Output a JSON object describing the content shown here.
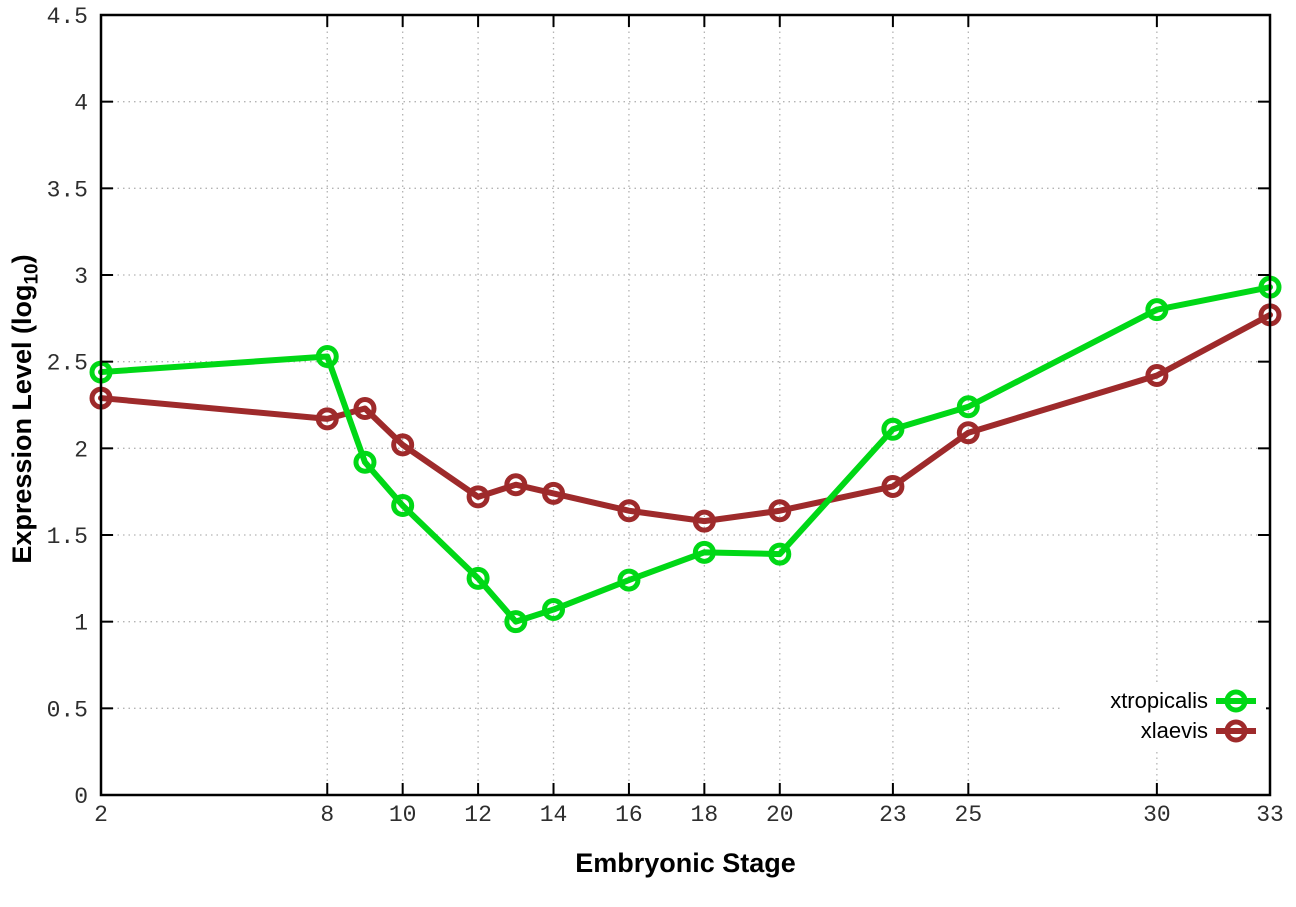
{
  "chart_data": {
    "type": "line",
    "title": "",
    "xlabel": "Embryonic Stage",
    "ylabel": "Expression Level (log10)",
    "ylabel_parts": {
      "prefix": "Expression Level (log",
      "sub": "10",
      "suffix": ")"
    },
    "x": [
      2,
      8,
      9,
      10,
      12,
      13,
      14,
      16,
      18,
      20,
      23,
      25,
      30,
      33
    ],
    "series": [
      {
        "name": "xtropicalis",
        "color": "#00d816",
        "values": [
          2.44,
          2.53,
          1.92,
          1.67,
          1.25,
          1.0,
          1.07,
          1.24,
          1.4,
          1.39,
          2.11,
          2.24,
          2.8,
          2.93
        ]
      },
      {
        "name": "xlaevis",
        "color": "#9e2a2b",
        "values": [
          2.29,
          2.17,
          2.23,
          2.02,
          1.72,
          1.79,
          1.74,
          1.64,
          1.58,
          1.64,
          1.78,
          2.09,
          2.42,
          2.77
        ]
      }
    ],
    "xlim": [
      2,
      33
    ],
    "ylim": [
      0,
      4.5
    ],
    "xticks": [
      2,
      8,
      10,
      12,
      14,
      16,
      18,
      20,
      23,
      25,
      30,
      33
    ],
    "yticks": [
      0,
      0.5,
      1,
      1.5,
      2,
      2.5,
      3,
      3.5,
      4,
      4.5
    ],
    "grid": true,
    "grid_style": "dotted",
    "legend_position": "inside-bottom-right",
    "marker": "open-circle"
  },
  "colors": {
    "background": "#ffffff",
    "axis": "#000000",
    "grid": "#b3b3b3",
    "tick_label": "#2e2e2e",
    "series_green": "#00d816",
    "series_red": "#9e2a2b"
  }
}
